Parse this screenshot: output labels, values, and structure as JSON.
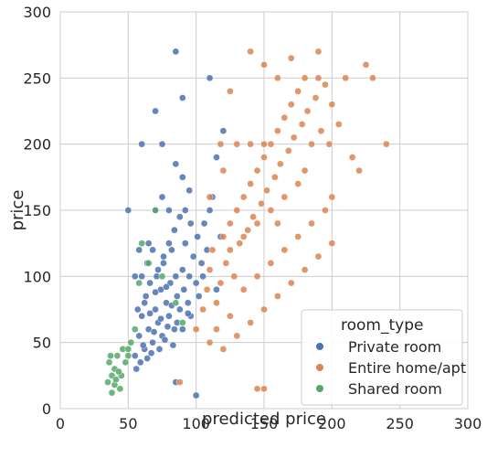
{
  "chart_data": {
    "type": "scatter",
    "title": "",
    "xlabel": "predicted price",
    "ylabel": "price",
    "xlim": [
      0,
      300
    ],
    "ylim": [
      0,
      300
    ],
    "x_ticks": [
      0,
      50,
      100,
      150,
      200,
      250,
      300
    ],
    "y_ticks": [
      0,
      50,
      100,
      150,
      200,
      250,
      300
    ],
    "grid": true,
    "legend": {
      "title": "room_type",
      "placement": "lower-right"
    },
    "series": [
      {
        "name": "Private room",
        "color": "#4c72b0",
        "points": [
          [
            55,
            40
          ],
          [
            58,
            55
          ],
          [
            60,
            70
          ],
          [
            62,
            45
          ],
          [
            63,
            85
          ],
          [
            65,
            60
          ],
          [
            66,
            95
          ],
          [
            68,
            50
          ],
          [
            70,
            75
          ],
          [
            71,
            100
          ],
          [
            72,
            65
          ],
          [
            74,
            90
          ],
          [
            75,
            55
          ],
          [
            76,
            110
          ],
          [
            78,
            80
          ],
          [
            80,
            70
          ],
          [
            81,
            95
          ],
          [
            82,
            120
          ],
          [
            84,
            60
          ],
          [
            85,
            100
          ],
          [
            86,
            85
          ],
          [
            88,
            75
          ],
          [
            90,
            105
          ],
          [
            91,
            90
          ],
          [
            92,
            125
          ],
          [
            94,
            80
          ],
          [
            95,
            100
          ],
          [
            96,
            70
          ],
          [
            98,
            115
          ],
          [
            100,
            95
          ],
          [
            101,
            130
          ],
          [
            102,
            85
          ],
          [
            104,
            110
          ],
          [
            105,
            100
          ],
          [
            106,
            140
          ],
          [
            108,
            120
          ],
          [
            110,
            150
          ],
          [
            112,
            160
          ],
          [
            115,
            90
          ],
          [
            118,
            130
          ],
          [
            56,
            30
          ],
          [
            59,
            35
          ],
          [
            61,
            48
          ],
          [
            64,
            38
          ],
          [
            67,
            42
          ],
          [
            69,
            58
          ],
          [
            73,
            45
          ],
          [
            77,
            52
          ],
          [
            79,
            62
          ],
          [
            83,
            48
          ],
          [
            57,
            75
          ],
          [
            62,
            80
          ],
          [
            66,
            72
          ],
          [
            70,
            88
          ],
          [
            74,
            68
          ],
          [
            78,
            92
          ],
          [
            82,
            78
          ],
          [
            86,
            65
          ],
          [
            90,
            60
          ],
          [
            94,
            72
          ],
          [
            60,
            100
          ],
          [
            64,
            110
          ],
          [
            68,
            120
          ],
          [
            72,
            105
          ],
          [
            76,
            115
          ],
          [
            80,
            125
          ],
          [
            84,
            135
          ],
          [
            88,
            145
          ],
          [
            92,
            150
          ],
          [
            96,
            140
          ],
          [
            65,
            125
          ],
          [
            70,
            150
          ],
          [
            75,
            160
          ],
          [
            80,
            150
          ],
          [
            85,
            185
          ],
          [
            90,
            175
          ],
          [
            95,
            165
          ],
          [
            60,
            200
          ],
          [
            70,
            225
          ],
          [
            85,
            270
          ],
          [
            110,
            250
          ],
          [
            115,
            190
          ],
          [
            120,
            210
          ],
          [
            75,
            200
          ],
          [
            90,
            235
          ],
          [
            100,
            10
          ],
          [
            85,
            20
          ],
          [
            50,
            150
          ],
          [
            55,
            100
          ],
          [
            58,
            120
          ]
        ]
      },
      {
        "name": "Entire home/apt",
        "color": "#dd8452",
        "points": [
          [
            100,
            60
          ],
          [
            105,
            75
          ],
          [
            108,
            90
          ],
          [
            110,
            105
          ],
          [
            112,
            120
          ],
          [
            115,
            80
          ],
          [
            118,
            95
          ],
          [
            120,
            130
          ],
          [
            122,
            110
          ],
          [
            125,
            140
          ],
          [
            128,
            100
          ],
          [
            130,
            150
          ],
          [
            132,
            125
          ],
          [
            135,
            160
          ],
          [
            138,
            135
          ],
          [
            140,
            170
          ],
          [
            142,
            145
          ],
          [
            145,
            180
          ],
          [
            148,
            155
          ],
          [
            150,
            190
          ],
          [
            152,
            165
          ],
          [
            155,
            200
          ],
          [
            158,
            175
          ],
          [
            160,
            210
          ],
          [
            162,
            185
          ],
          [
            165,
            220
          ],
          [
            168,
            195
          ],
          [
            170,
            230
          ],
          [
            172,
            205
          ],
          [
            175,
            240
          ],
          [
            178,
            215
          ],
          [
            180,
            250
          ],
          [
            182,
            225
          ],
          [
            185,
            200
          ],
          [
            188,
            235
          ],
          [
            190,
            250
          ],
          [
            192,
            210
          ],
          [
            195,
            245
          ],
          [
            198,
            200
          ],
          [
            200,
            230
          ],
          [
            205,
            215
          ],
          [
            210,
            250
          ],
          [
            215,
            190
          ],
          [
            220,
            180
          ],
          [
            225,
            260
          ],
          [
            230,
            250
          ],
          [
            240,
            200
          ],
          [
            200,
            160
          ],
          [
            195,
            150
          ],
          [
            185,
            140
          ],
          [
            175,
            130
          ],
          [
            165,
            120
          ],
          [
            155,
            110
          ],
          [
            145,
            100
          ],
          [
            135,
            90
          ],
          [
            125,
            70
          ],
          [
            115,
            60
          ],
          [
            110,
            50
          ],
          [
            120,
            45
          ],
          [
            130,
            55
          ],
          [
            140,
            65
          ],
          [
            150,
            75
          ],
          [
            160,
            85
          ],
          [
            170,
            95
          ],
          [
            180,
            105
          ],
          [
            190,
            115
          ],
          [
            200,
            125
          ],
          [
            175,
            170
          ],
          [
            165,
            160
          ],
          [
            155,
            150
          ],
          [
            145,
            140
          ],
          [
            135,
            130
          ],
          [
            125,
            120
          ],
          [
            160,
            250
          ],
          [
            150,
            260
          ],
          [
            140,
            270
          ],
          [
            170,
            265
          ],
          [
            190,
            270
          ],
          [
            180,
            180
          ],
          [
            160,
            140
          ],
          [
            150,
            200
          ],
          [
            140,
            200
          ],
          [
            130,
            200
          ],
          [
            120,
            180
          ],
          [
            110,
            160
          ],
          [
            118,
            200
          ],
          [
            125,
            240
          ],
          [
            145,
            15
          ],
          [
            150,
            15
          ],
          [
            88,
            20
          ]
        ]
      },
      {
        "name": "Shared room",
        "color": "#55a868",
        "points": [
          [
            35,
            20
          ],
          [
            38,
            25
          ],
          [
            40,
            30
          ],
          [
            36,
            35
          ],
          [
            42,
            40
          ],
          [
            44,
            15
          ],
          [
            46,
            45
          ],
          [
            38,
            12
          ],
          [
            40,
            18
          ],
          [
            45,
            25
          ],
          [
            48,
            35
          ],
          [
            50,
            40
          ],
          [
            43,
            28
          ],
          [
            37,
            40
          ],
          [
            52,
            50
          ],
          [
            55,
            60
          ],
          [
            58,
            95
          ],
          [
            60,
            125
          ],
          [
            70,
            150
          ],
          [
            75,
            100
          ],
          [
            90,
            65
          ],
          [
            85,
            80
          ],
          [
            65,
            110
          ],
          [
            50,
            45
          ],
          [
            41,
            22
          ]
        ]
      }
    ]
  }
}
